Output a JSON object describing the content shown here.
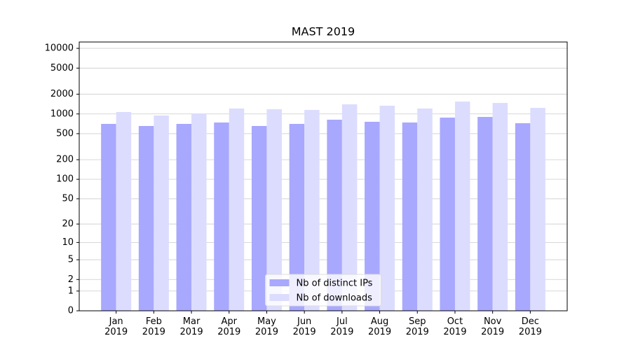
{
  "chart_data": {
    "type": "bar",
    "title": "MAST 2019",
    "categories": [
      "Jan\n2019",
      "Feb\n2019",
      "Mar\n2019",
      "Apr\n2019",
      "May\n2019",
      "Jun\n2019",
      "Jul\n2019",
      "Aug\n2019",
      "Sep\n2019",
      "Oct\n2019",
      "Nov\n2019",
      "Dec\n2019"
    ],
    "series": [
      {
        "name": "Nb of distinct IPs",
        "color": "#a8a8fe",
        "values": [
          705,
          655,
          705,
          740,
          655,
          705,
          817,
          759,
          740,
          879,
          901,
          722
        ]
      },
      {
        "name": "Nb of downloads",
        "color": "#dcdcfe",
        "values": [
          1070,
          946,
          1018,
          1210,
          1180,
          1151,
          1402,
          1334,
          1210,
          1546,
          1472,
          1239
        ]
      }
    ],
    "yscale": "log1p",
    "ylim": [
      0,
      12500
    ],
    "yticks": [
      0,
      1,
      2,
      5,
      10,
      20,
      50,
      100,
      200,
      500,
      1000,
      2000,
      5000,
      10000
    ],
    "grid": true,
    "legend": "lower center"
  }
}
